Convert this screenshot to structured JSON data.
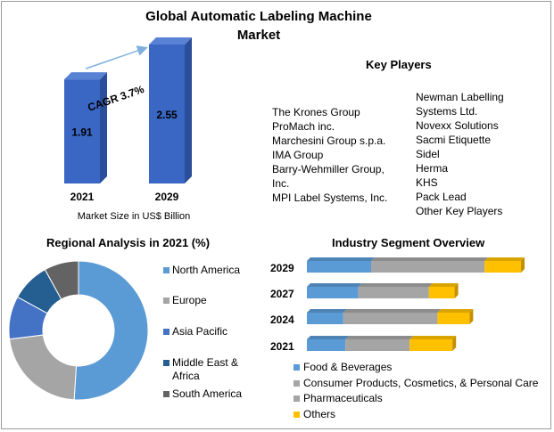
{
  "title": "Global Automatic Labeling Machine Market",
  "colors": {
    "accent_blue": "#3a66c4",
    "dark_blue": "#2a4e9a",
    "arrow": "#7fb0dc"
  },
  "chart_data": [
    {
      "type": "bar",
      "categories": [
        "2021",
        "2029"
      ],
      "values": [
        1.91,
        2.55
      ],
      "data_labels": [
        "1.91",
        "2.55"
      ],
      "xlabel": "Market Size in US$ Billion",
      "annotation": "CAGR 3.7%",
      "style": "3d"
    },
    {
      "type": "pie",
      "donut": true,
      "title": "Regional Analysis in 2021 (%)",
      "labels": [
        "North America",
        "Europe",
        "Asia Pacific",
        "Middle East & Africa",
        "South America"
      ],
      "values": [
        51,
        22,
        10,
        9,
        8
      ],
      "colors": [
        "#5b9bd5",
        "#a5a5a5",
        "#4472c4",
        "#255e91",
        "#636363"
      ],
      "legend": "right"
    },
    {
      "type": "bar",
      "orientation": "horizontal",
      "stacked": true,
      "title": "Industry Segment Overview",
      "categories": [
        "2029",
        "2027",
        "2024",
        "2021"
      ],
      "series": [
        {
          "name": "Food & Beverages",
          "values": [
            30,
            24,
            17,
            18
          ],
          "color": "#5b9bd5"
        },
        {
          "name": "Consumer Products, Cosmetics, & Personal Care",
          "values": [
            53,
            33,
            44,
            30
          ],
          "color": "#a5a5a5"
        },
        {
          "name": "Pharmaceuticals",
          "values": [
            0,
            0,
            0,
            0
          ],
          "color": "#a5a5a5"
        },
        {
          "name": "Others",
          "values": [
            17,
            12,
            15,
            20
          ],
          "color": "#ffc000"
        }
      ],
      "legend": "bottom"
    }
  ],
  "key_players": {
    "title": "Key Players",
    "left": [
      "The Krones Group",
      "ProMach inc.",
      "Marchesini Group s.p.a.",
      "IMA Group",
      "Barry-Wehmiller Group,",
      "Inc.",
      "MPI Label Systems,  Inc."
    ],
    "right": [
      "Newman Labelling",
      "Systems Ltd.",
      "Novexx Solutions",
      "Sacmi Etiquette",
      "Sidel",
      "Herma",
      "KHS",
      "Pack Lead",
      "Other Key Players"
    ]
  }
}
